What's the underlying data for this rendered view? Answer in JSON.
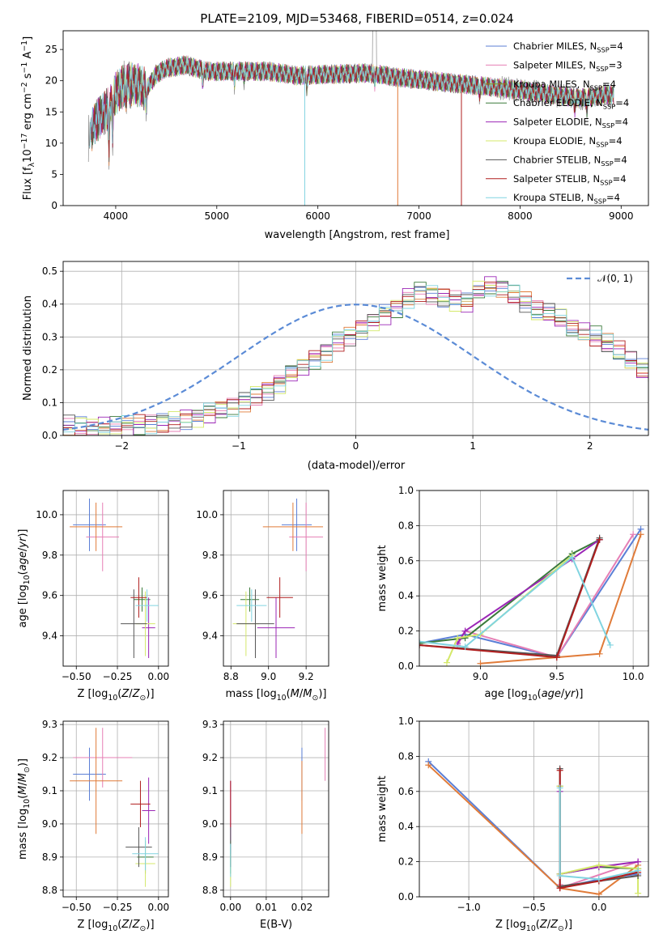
{
  "figure_title": "PLATE=2109, MJD=53468, FIBERID=0514, z=0.024",
  "colors": {
    "Chabrier MILES": "#5b7fd6",
    "Salpeter MILES": "#e67fb5",
    "Kroupa MILES": "#8c8c1a",
    "Chabrier ELODIE": "#3a7a3a",
    "Salpeter ELODIE": "#9b26b6",
    "Kroupa ELODIE": "#d4e86a",
    "Chabrier STELIB": "#555555",
    "Salpeter STELIB": "#b01e1e",
    "Kroupa STELIB": "#80d4e0",
    "Kroupa_MILES_bold": "#e07b39",
    "normal_curve": "#5b8bd6",
    "grid": "#b0b0b0"
  },
  "chart_data": [
    {
      "id": "spectrum",
      "type": "line",
      "title": "PLATE=2109, MJD=53468, FIBERID=0514, z=0.024",
      "xlabel": "wavelength [Angstrom, rest frame]",
      "ylabel": "Flux [f_λ10^-17 erg cm^-2 s^-1 A^-1]",
      "xlim": [
        3480,
        9270
      ],
      "ylim": [
        0,
        28
      ],
      "xticks": [
        "4000",
        "5000",
        "6000",
        "7000",
        "8000",
        "9000"
      ],
      "yticks": [
        "0",
        "5",
        "10",
        "15",
        "20",
        "25"
      ],
      "grid": false,
      "legend_position": "top-right",
      "legend": [
        {
          "model": "Chabrier MILES",
          "nssp": "4"
        },
        {
          "model": "Salpeter MILES",
          "nssp": "3"
        },
        {
          "model": "Kroupa MILES",
          "nssp": "4"
        },
        {
          "model": "Chabrier ELODIE",
          "nssp": "4"
        },
        {
          "model": "Salpeter ELODIE",
          "nssp": "4"
        },
        {
          "model": "Kroupa ELODIE",
          "nssp": "4"
        },
        {
          "model": "Chabrier STELIB",
          "nssp": "4"
        },
        {
          "model": "Salpeter STELIB",
          "nssp": "4"
        },
        {
          "model": "Kroupa STELIB",
          "nssp": "4"
        }
      ],
      "continuum": {
        "x": [
          3730,
          3800,
          3900,
          4000,
          4100,
          4200,
          4300,
          4400,
          4500,
          4700,
          4900,
          5200,
          5500,
          5800,
          6100,
          6500,
          6800,
          7100,
          7400,
          7700,
          8000,
          8300,
          8600,
          8900
        ],
        "y": [
          11,
          13.5,
          15,
          18,
          19.5,
          19.5,
          18.5,
          21,
          22,
          22.5,
          21.5,
          21.5,
          21.5,
          20.8,
          21,
          21.2,
          20.5,
          20,
          19.5,
          19,
          18.5,
          17.8,
          17.2,
          17.8
        ]
      }
    },
    {
      "id": "residuals",
      "type": "histogram",
      "xlabel": "(data-model)/error",
      "ylabel": "Normed distribution",
      "xlim": [
        -2.5,
        2.5
      ],
      "ylim": [
        0,
        0.53
      ],
      "xticks": [
        "−2",
        "−1",
        "0",
        "1",
        "2"
      ],
      "yticks": [
        "0.0",
        "0.1",
        "0.2",
        "0.3",
        "0.4",
        "0.5"
      ],
      "grid": true,
      "legend_position": "top-right",
      "legend": [
        "𝒩(0, 1)"
      ],
      "bin_width": 0.1,
      "bin_start": -2.5,
      "base_values": [
        0.03,
        0.028,
        0.027,
        0.026,
        0.028,
        0.03,
        0.033,
        0.035,
        0.04,
        0.045,
        0.05,
        0.057,
        0.07,
        0.078,
        0.09,
        0.105,
        0.125,
        0.14,
        0.16,
        0.19,
        0.21,
        0.235,
        0.255,
        0.29,
        0.305,
        0.325,
        0.345,
        0.37,
        0.39,
        0.42,
        0.44,
        0.43,
        0.42,
        0.41,
        0.405,
        0.44,
        0.455,
        0.45,
        0.43,
        0.405,
        0.38,
        0.37,
        0.355,
        0.33,
        0.315,
        0.3,
        0.28,
        0.255,
        0.225,
        0.2,
        0.185,
        0.17,
        0.155,
        0.14,
        0.125,
        0.112,
        0.1,
        0.09,
        0.08,
        0.07,
        0.065,
        0.055,
        0.045,
        0.04,
        0.035,
        0.03,
        0.027,
        0.024,
        0.022,
        0.02
      ]
    },
    {
      "id": "age_vs_Z",
      "type": "errorbar",
      "xlabel": "Z [log10(Z/Z⊙)]",
      "ylabel": "age  [log10(age/yr)]",
      "xlim": [
        -0.58,
        0.06
      ],
      "ylim": [
        9.25,
        10.12
      ],
      "xticks": [
        "−0.50",
        "−0.25",
        "0.00"
      ],
      "yticks": [
        "9.4",
        "9.6",
        "9.8",
        "10.0"
      ],
      "grid": true,
      "points": [
        {
          "model": "Chabrier MILES",
          "x": -0.42,
          "xerr": 0.1,
          "y": 9.95,
          "yerr": 0.13
        },
        {
          "model": "Salpeter MILES",
          "x": -0.34,
          "xerr": 0.1,
          "y": 9.89,
          "yerr": 0.17
        },
        {
          "model": "Kroupa MILES",
          "x": -0.38,
          "xerr": 0.16,
          "y": 9.94,
          "yerr": 0.12
        },
        {
          "model": "Chabrier ELODIE",
          "x": -0.1,
          "xerr": 0.05,
          "y": 9.58,
          "yerr": 0.06
        },
        {
          "model": "Salpeter ELODIE",
          "x": -0.06,
          "xerr": 0.04,
          "y": 9.44,
          "yerr": 0.15
        },
        {
          "model": "Kroupa ELODIE",
          "x": -0.08,
          "xerr": 0.06,
          "y": 9.46,
          "yerr": 0.16
        },
        {
          "model": "Chabrier STELIB",
          "x": -0.15,
          "xerr": 0.08,
          "y": 9.46,
          "yerr": 0.17
        },
        {
          "model": "Salpeter STELIB",
          "x": -0.12,
          "xerr": 0.05,
          "y": 9.59,
          "yerr": 0.1
        },
        {
          "model": "Kroupa STELIB",
          "x": -0.07,
          "xerr": 0.07,
          "y": 9.55,
          "yerr": 0.08
        }
      ]
    },
    {
      "id": "age_vs_mass",
      "type": "errorbar",
      "xlabel": "mass [log10(M/M⊙)]",
      "ylabel": "",
      "xlim": [
        8.76,
        9.32
      ],
      "ylim": [
        9.25,
        10.12
      ],
      "xticks": [
        "8.8",
        "9.0",
        "9.2"
      ],
      "yticks": [
        "9.4",
        "9.6",
        "9.8",
        "10.0"
      ],
      "grid": true,
      "points": [
        {
          "model": "Chabrier MILES",
          "x": 9.15,
          "xerr": 0.08,
          "y": 9.95,
          "yerr": 0.13
        },
        {
          "model": "Salpeter MILES",
          "x": 9.2,
          "xerr": 0.09,
          "y": 9.89,
          "yerr": 0.17
        },
        {
          "model": "Kroupa MILES",
          "x": 9.13,
          "xerr": 0.16,
          "y": 9.94,
          "yerr": 0.12
        },
        {
          "model": "Chabrier ELODIE",
          "x": 8.9,
          "xerr": 0.05,
          "y": 9.58,
          "yerr": 0.06
        },
        {
          "model": "Salpeter ELODIE",
          "x": 9.04,
          "xerr": 0.1,
          "y": 9.44,
          "yerr": 0.15
        },
        {
          "model": "Kroupa ELODIE",
          "x": 8.88,
          "xerr": 0.07,
          "y": 9.46,
          "yerr": 0.16
        },
        {
          "model": "Chabrier STELIB",
          "x": 8.93,
          "xerr": 0.1,
          "y": 9.46,
          "yerr": 0.17
        },
        {
          "model": "Salpeter STELIB",
          "x": 9.06,
          "xerr": 0.07,
          "y": 9.59,
          "yerr": 0.1
        },
        {
          "model": "Kroupa STELIB",
          "x": 8.91,
          "xerr": 0.08,
          "y": 9.55,
          "yerr": 0.08
        }
      ]
    },
    {
      "id": "weight_vs_age",
      "type": "line",
      "xlabel": "age  [log10(age/yr)]",
      "ylabel": "mass weight",
      "xlim": [
        8.6,
        10.1
      ],
      "ylim": [
        0,
        1
      ],
      "xticks": [
        "9.0",
        "9.5",
        "10.0"
      ],
      "yticks": [
        "0.0",
        "0.2",
        "0.4",
        "0.6",
        "0.8",
        "1.0"
      ],
      "grid": true,
      "series": [
        {
          "model": "Chabrier MILES",
          "x": [
            8.6,
            8.9,
            9.5,
            10.05
          ],
          "y": [
            0.13,
            0.18,
            0.05,
            0.78
          ]
        },
        {
          "model": "Salpeter MILES",
          "x": [
            8.85,
            8.9,
            9.5,
            10.0
          ],
          "y": [
            0.12,
            0.2,
            0.05,
            0.75
          ]
        },
        {
          "model": "Kroupa MILES",
          "x": [
            9.0,
            9.5,
            9.78,
            10.05
          ],
          "y": [
            0.015,
            0.05,
            0.07,
            0.75
          ]
        },
        {
          "model": "Chabrier ELODIE",
          "x": [
            8.6,
            8.9,
            9.6,
            9.78
          ],
          "y": [
            0.13,
            0.16,
            0.64,
            0.72
          ]
        },
        {
          "model": "Salpeter ELODIE",
          "x": [
            8.85,
            8.9,
            9.6,
            9.78
          ],
          "y": [
            0.13,
            0.2,
            0.61,
            0.72
          ]
        },
        {
          "model": "Kroupa ELODIE",
          "x": [
            8.78,
            8.85,
            9.0,
            9.6
          ],
          "y": [
            0.02,
            0.16,
            0.18,
            0.63
          ]
        },
        {
          "model": "Chabrier STELIB",
          "x": [
            8.6,
            9.5,
            9.78
          ],
          "y": [
            0.12,
            0.06,
            0.73
          ]
        },
        {
          "model": "Salpeter STELIB",
          "x": [
            8.6,
            9.5,
            9.78
          ],
          "y": [
            0.12,
            0.05,
            0.72
          ]
        },
        {
          "model": "Kroupa STELIB",
          "x": [
            8.6,
            8.9,
            9.6,
            9.85
          ],
          "y": [
            0.14,
            0.11,
            0.62,
            0.12
          ]
        }
      ]
    },
    {
      "id": "mass_vs_Z",
      "type": "errorbar",
      "xlabel": "Z [log10(Z/Z⊙)]",
      "ylabel": "mass [log10(M/M⊙)]",
      "xlim": [
        -0.58,
        0.06
      ],
      "ylim": [
        8.78,
        9.31
      ],
      "xticks": [
        "−0.50",
        "−0.25",
        "0.00"
      ],
      "yticks": [
        "8.8",
        "8.9",
        "9.0",
        "9.1",
        "9.2",
        "9.3"
      ],
      "grid": true,
      "points": [
        {
          "model": "Chabrier MILES",
          "x": -0.42,
          "xerr": 0.1,
          "y": 9.15,
          "yerr": 0.08
        },
        {
          "model": "Salpeter MILES",
          "x": -0.34,
          "xerr": 0.18,
          "y": 9.2,
          "yerr": 0.09
        },
        {
          "model": "Kroupa MILES",
          "x": -0.38,
          "xerr": 0.16,
          "y": 9.13,
          "yerr": 0.16
        },
        {
          "model": "Chabrier ELODIE",
          "x": -0.08,
          "xerr": 0.05,
          "y": 8.9,
          "yerr": 0.05
        },
        {
          "model": "Salpeter ELODIE",
          "x": -0.06,
          "xerr": 0.04,
          "y": 9.04,
          "yerr": 0.1
        },
        {
          "model": "Kroupa ELODIE",
          "x": -0.08,
          "xerr": 0.06,
          "y": 8.88,
          "yerr": 0.07
        },
        {
          "model": "Chabrier STELIB",
          "x": -0.12,
          "xerr": 0.08,
          "y": 8.93,
          "yerr": 0.06
        },
        {
          "model": "Salpeter STELIB",
          "x": -0.11,
          "xerr": 0.06,
          "y": 9.06,
          "yerr": 0.07
        },
        {
          "model": "Kroupa STELIB",
          "x": -0.08,
          "xerr": 0.08,
          "y": 8.91,
          "yerr": 0.05
        }
      ]
    },
    {
      "id": "mass_vs_ebv",
      "type": "errorbar",
      "xlabel": "E(B-V)",
      "ylabel": "",
      "xlim": [
        -0.002,
        0.0275
      ],
      "ylim": [
        8.78,
        9.31
      ],
      "xticks": [
        "0.00",
        "0.01",
        "0.02"
      ],
      "yticks": [
        "8.8",
        "8.9",
        "9.0",
        "9.1",
        "9.2",
        "9.3"
      ],
      "grid": true,
      "points": [
        {
          "model": "Chabrier MILES",
          "x": 0.02,
          "y": 9.15,
          "yerr": 0.08
        },
        {
          "model": "Salpeter MILES",
          "x": 0.0265,
          "y": 9.21,
          "yerr": 0.08
        },
        {
          "model": "Kroupa MILES",
          "x": 0.02,
          "y": 9.08,
          "yerr": 0.11
        },
        {
          "model": "Chabrier ELODIE",
          "x": 0.0,
          "y": 8.9,
          "yerr": 0.05
        },
        {
          "model": "Salpeter ELODIE",
          "x": 0.0,
          "y": 9.04,
          "yerr": 0.09
        },
        {
          "model": "Kroupa ELODIE",
          "x": 0.0,
          "y": 8.86,
          "yerr": 0.05
        },
        {
          "model": "Chabrier STELIB",
          "x": 0.0,
          "y": 8.93,
          "yerr": 0.06
        },
        {
          "model": "Salpeter STELIB",
          "x": 0.0,
          "y": 9.06,
          "yerr": 0.07
        },
        {
          "model": "Kroupa STELIB",
          "x": 0.0,
          "y": 8.89,
          "yerr": 0.05
        }
      ]
    },
    {
      "id": "weight_vs_Z",
      "type": "line",
      "xlabel": "Z [log10(Z/Z⊙)]",
      "ylabel": "mass weight",
      "xlim": [
        -1.38,
        0.38
      ],
      "ylim": [
        0,
        1
      ],
      "xticks": [
        "−1.0",
        "−0.5",
        "0.0"
      ],
      "yticks": [
        "0.0",
        "0.2",
        "0.4",
        "0.6",
        "0.8",
        "1.0"
      ],
      "grid": true,
      "series": [
        {
          "model": "Chabrier MILES",
          "x": [
            -1.31,
            -0.3,
            0.0,
            0.3
          ],
          "y": [
            0.77,
            0.05,
            0.1,
            0.13
          ]
        },
        {
          "model": "Salpeter MILES",
          "x": [
            -0.3,
            -0.3,
            0.3
          ],
          "y": [
            0.07,
            0.05,
            0.2
          ]
        },
        {
          "model": "Kroupa MILES",
          "x": [
            -1.31,
            -0.3,
            0.0,
            0.3
          ],
          "y": [
            0.75,
            0.05,
            0.015,
            0.18
          ]
        },
        {
          "model": "Chabrier ELODIE",
          "x": [
            -0.3,
            -0.3,
            0.0,
            0.3
          ],
          "y": [
            0.63,
            0.13,
            0.17,
            0.16
          ]
        },
        {
          "model": "Salpeter ELODIE",
          "x": [
            -0.3,
            -0.3,
            0.0,
            0.3
          ],
          "y": [
            0.6,
            0.13,
            0.17,
            0.2
          ]
        },
        {
          "model": "Kroupa ELODIE",
          "x": [
            -0.3,
            -0.3,
            0.0,
            0.3,
            0.3
          ],
          "y": [
            0.63,
            0.13,
            0.18,
            0.16,
            0.02
          ]
        },
        {
          "model": "Chabrier STELIB",
          "x": [
            -0.3,
            -0.3,
            0.0,
            0.3
          ],
          "y": [
            0.73,
            0.06,
            0.09,
            0.12
          ]
        },
        {
          "model": "Salpeter STELIB",
          "x": [
            -0.3,
            -0.3,
            0.0,
            0.3
          ],
          "y": [
            0.72,
            0.05,
            0.09,
            0.14
          ]
        },
        {
          "model": "Kroupa STELIB",
          "x": [
            -0.3,
            -0.3,
            0.0,
            0.3
          ],
          "y": [
            0.62,
            0.12,
            0.1,
            0.15
          ]
        }
      ]
    }
  ]
}
